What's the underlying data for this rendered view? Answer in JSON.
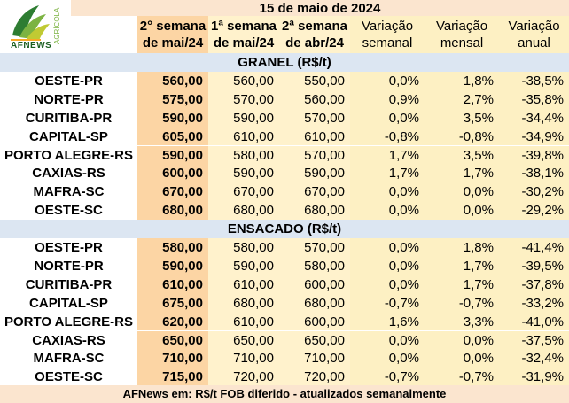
{
  "brand": {
    "name": "AFNEWS",
    "sub": "AGRÍCOLA"
  },
  "title": "15 de maio de 2024",
  "headers": {
    "col1": [
      "2° semana",
      "de mai/24"
    ],
    "col2": [
      "1ª semana",
      "de mai/24"
    ],
    "col3": [
      "2ª semana",
      "de abr/24"
    ],
    "col4": [
      "Variação",
      "semanal"
    ],
    "col5": [
      "Variação",
      "mensal"
    ],
    "col6": [
      "Variação",
      "anual"
    ]
  },
  "sections": [
    {
      "title": "GRANEL (R$/t)",
      "rows": [
        {
          "city": "OESTE-PR",
          "c1": "560,00",
          "c2": "560,00",
          "c3": "550,00",
          "w": "0,0%",
          "m": "1,8%",
          "y": "-38,5%"
        },
        {
          "city": "NORTE-PR",
          "c1": "575,00",
          "c2": "570,00",
          "c3": "560,00",
          "w": "0,9%",
          "m": "2,7%",
          "y": "-35,8%"
        },
        {
          "city": "CURITIBA-PR",
          "c1": "590,00",
          "c2": "590,00",
          "c3": "570,00",
          "w": "0,0%",
          "m": "3,5%",
          "y": "-34,4%"
        },
        {
          "city": "CAPITAL-SP",
          "c1": "605,00",
          "c2": "610,00",
          "c3": "610,00",
          "w": "-0,8%",
          "m": "-0,8%",
          "y": "-34,9%"
        },
        {
          "city": "PORTO ALEGRE-RS",
          "c1": "590,00",
          "c2": "580,00",
          "c3": "570,00",
          "w": "1,7%",
          "m": "3,5%",
          "y": "-39,8%"
        },
        {
          "city": "CAXIAS-RS",
          "c1": "600,00",
          "c2": "590,00",
          "c3": "590,00",
          "w": "1,7%",
          "m": "1,7%",
          "y": "-38,1%"
        },
        {
          "city": "MAFRA-SC",
          "c1": "670,00",
          "c2": "670,00",
          "c3": "670,00",
          "w": "0,0%",
          "m": "0,0%",
          "y": "-30,2%"
        },
        {
          "city": "OESTE-SC",
          "c1": "680,00",
          "c2": "680,00",
          "c3": "680,00",
          "w": "0,0%",
          "m": "0,0%",
          "y": "-29,2%"
        }
      ]
    },
    {
      "title": "ENSACADO (R$/t)",
      "rows": [
        {
          "city": "OESTE-PR",
          "c1": "580,00",
          "c2": "580,00",
          "c3": "570,00",
          "w": "0,0%",
          "m": "1,8%",
          "y": "-41,4%"
        },
        {
          "city": "NORTE-PR",
          "c1": "590,00",
          "c2": "590,00",
          "c3": "580,00",
          "w": "0,0%",
          "m": "1,7%",
          "y": "-39,5%"
        },
        {
          "city": "CURITIBA-PR",
          "c1": "610,00",
          "c2": "610,00",
          "c3": "600,00",
          "w": "0,0%",
          "m": "1,7%",
          "y": "-37,8%"
        },
        {
          "city": "CAPITAL-SP",
          "c1": "675,00",
          "c2": "680,00",
          "c3": "680,00",
          "w": "-0,7%",
          "m": "-0,7%",
          "y": "-33,2%"
        },
        {
          "city": "PORTO ALEGRE-RS",
          "c1": "620,00",
          "c2": "610,00",
          "c3": "600,00",
          "w": "1,6%",
          "m": "3,3%",
          "y": "-41,0%"
        },
        {
          "city": "CAXIAS-RS",
          "c1": "650,00",
          "c2": "650,00",
          "c3": "650,00",
          "w": "0,0%",
          "m": "0,0%",
          "y": "-37,5%"
        },
        {
          "city": "MAFRA-SC",
          "c1": "710,00",
          "c2": "710,00",
          "c3": "710,00",
          "w": "0,0%",
          "m": "0,0%",
          "y": "-32,4%"
        },
        {
          "city": "OESTE-SC",
          "c1": "715,00",
          "c2": "720,00",
          "c3": "720,00",
          "w": "-0,7%",
          "m": "-0,7%",
          "y": "-31,9%"
        }
      ]
    }
  ],
  "footer": "AFNews em: R$/t FOB diferido - atualizados semanalmente",
  "colors": {
    "tan": "#fbe5cf",
    "gold": "#fcd5a4",
    "cream": "#fff2cc",
    "yellow": "#fdf0c3",
    "blue": "#dce6f2"
  }
}
